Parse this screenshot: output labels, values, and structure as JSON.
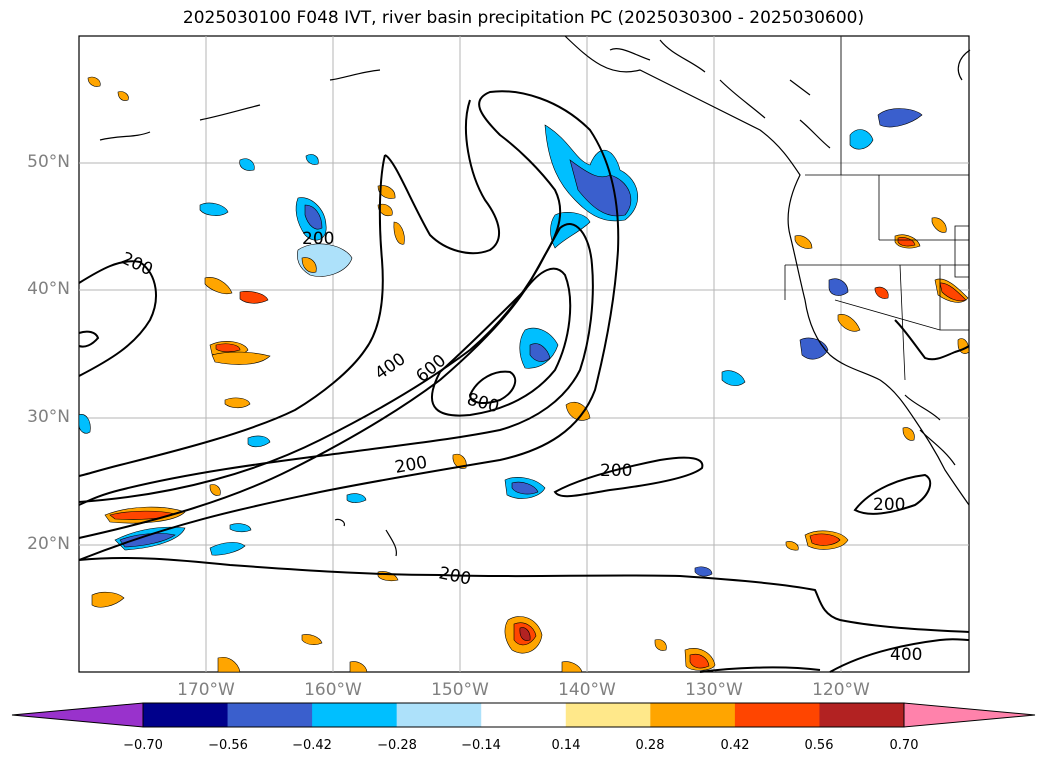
{
  "title": "2025030100 F048 IVT, river basin precipitation PC (2025030300 - 2025030600)",
  "lat_labels": [
    "50°N",
    "40°N",
    "30°N",
    "20°N"
  ],
  "lon_labels": [
    "170°W",
    "160°W",
    "150°W",
    "140°W",
    "130°W",
    "120°W"
  ],
  "contour_labels": [
    "200",
    "200",
    "200",
    "200",
    "200",
    "400",
    "600",
    "800",
    "200",
    "400"
  ],
  "colorbar": {
    "ticks": [
      "−0.70",
      "−0.56",
      "−0.42",
      "−0.28",
      "−0.14",
      "0.14",
      "0.28",
      "0.42",
      "0.56",
      "0.70"
    ],
    "colors": [
      "#9932CC",
      "#00008B",
      "#3A5FCD",
      "#00BFFF",
      "#ADE1FA",
      "#FFFFFF",
      "#FFE88A",
      "#FFA500",
      "#FF4500",
      "#B22222",
      "#FF82AB"
    ]
  }
}
